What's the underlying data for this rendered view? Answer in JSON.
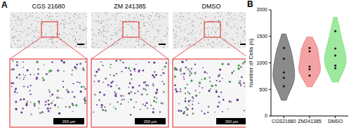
{
  "panel_labels": [
    "A",
    "B"
  ],
  "images": {
    "titles": [
      "CGS 21680",
      "ZM 241385",
      "DMSO"
    ],
    "inset_scale_bar": "200 μm"
  },
  "chart_data": {
    "type": "violin",
    "categories": [
      "CGS21680",
      "ZM241385",
      "DMSO"
    ],
    "values": [
      [
        1280,
        1080,
        820,
        720,
        560
      ],
      [
        1280,
        1220,
        930,
        880,
        760
      ],
      [
        1600,
        1270,
        1140,
        950,
        900
      ]
    ],
    "colors": [
      "#6e6e6e",
      "#f08c8c",
      "#86e486"
    ],
    "ylabel": "Number of Cells (n)",
    "ylim": [
      0,
      2000
    ],
    "yticks": [
      0,
      500,
      1000,
      1500,
      2000
    ],
    "grid": false,
    "marker": "circle"
  }
}
